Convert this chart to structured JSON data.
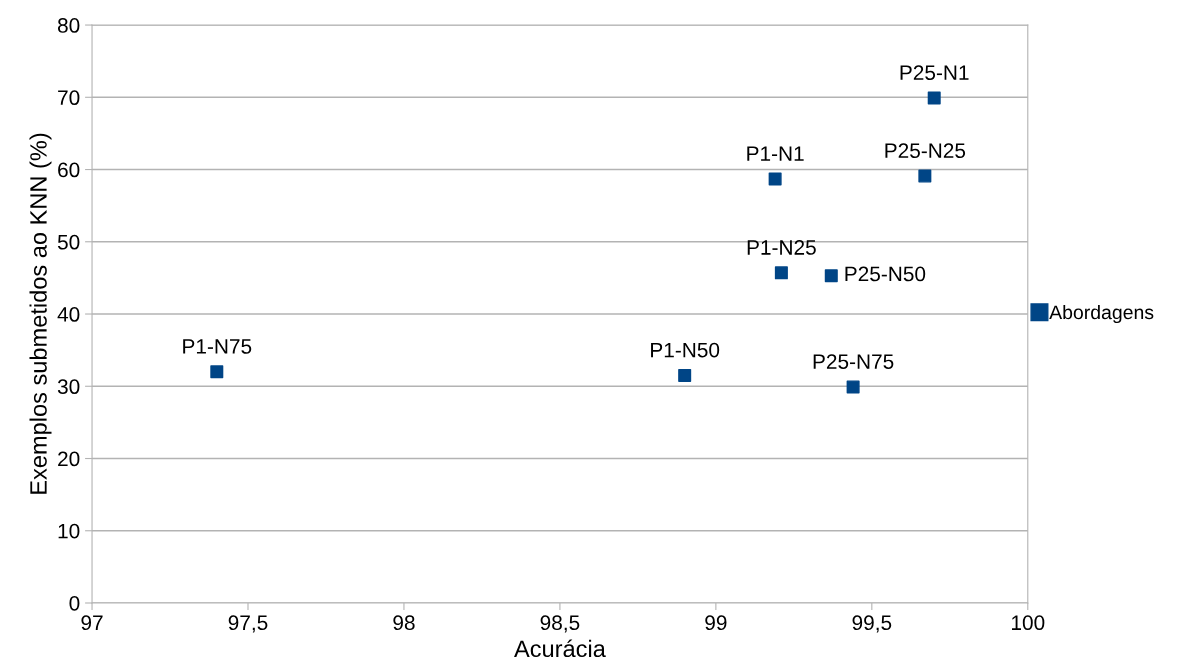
{
  "chart_data": {
    "type": "scatter",
    "xlabel": "Acurácia",
    "ylabel": "Exemplos submetidos ao KNN (%)",
    "series": [
      {
        "name": "Abordagens",
        "color": "#004586",
        "x": [
          97.4,
          98.9,
          99.19,
          99.21,
          99.37,
          99.44,
          99.67,
          99.7
        ],
        "values": [
          32,
          31.5,
          58.7,
          45.7,
          45.3,
          29.9,
          59.1,
          69.9
        ]
      }
    ],
    "annotations": [
      {
        "text": "P1-N75",
        "x": 97.4,
        "y": 32
      },
      {
        "text": "P1-N50",
        "x": 98.9,
        "y": 31.5
      },
      {
        "text": "P1-N1",
        "x": 99.19,
        "y": 58.7
      },
      {
        "text": "P1-N25",
        "x": 99.21,
        "y": 45.7
      },
      {
        "text": "P25-N50",
        "x": 99.37,
        "y": 45.3
      },
      {
        "text": "P25-N75",
        "x": 99.44,
        "y": 29.9
      },
      {
        "text": "P25-N25",
        "x": 99.67,
        "y": 59.1
      },
      {
        "text": "P25-N1",
        "x": 99.7,
        "y": 69.9
      }
    ],
    "xlim": [
      97,
      100
    ],
    "xticks": [
      97,
      {
        "value": 97.5,
        "label": "97,5"
      },
      98,
      {
        "value": 98.5,
        "label": "98,5"
      },
      99,
      {
        "value": 99.5,
        "label": "99,5"
      },
      100
    ],
    "ylim": [
      0,
      80
    ],
    "yticks": [
      0,
      10,
      20,
      30,
      40,
      50,
      60,
      70,
      80
    ],
    "grid": "y",
    "legend": "right",
    "marker": "square"
  }
}
